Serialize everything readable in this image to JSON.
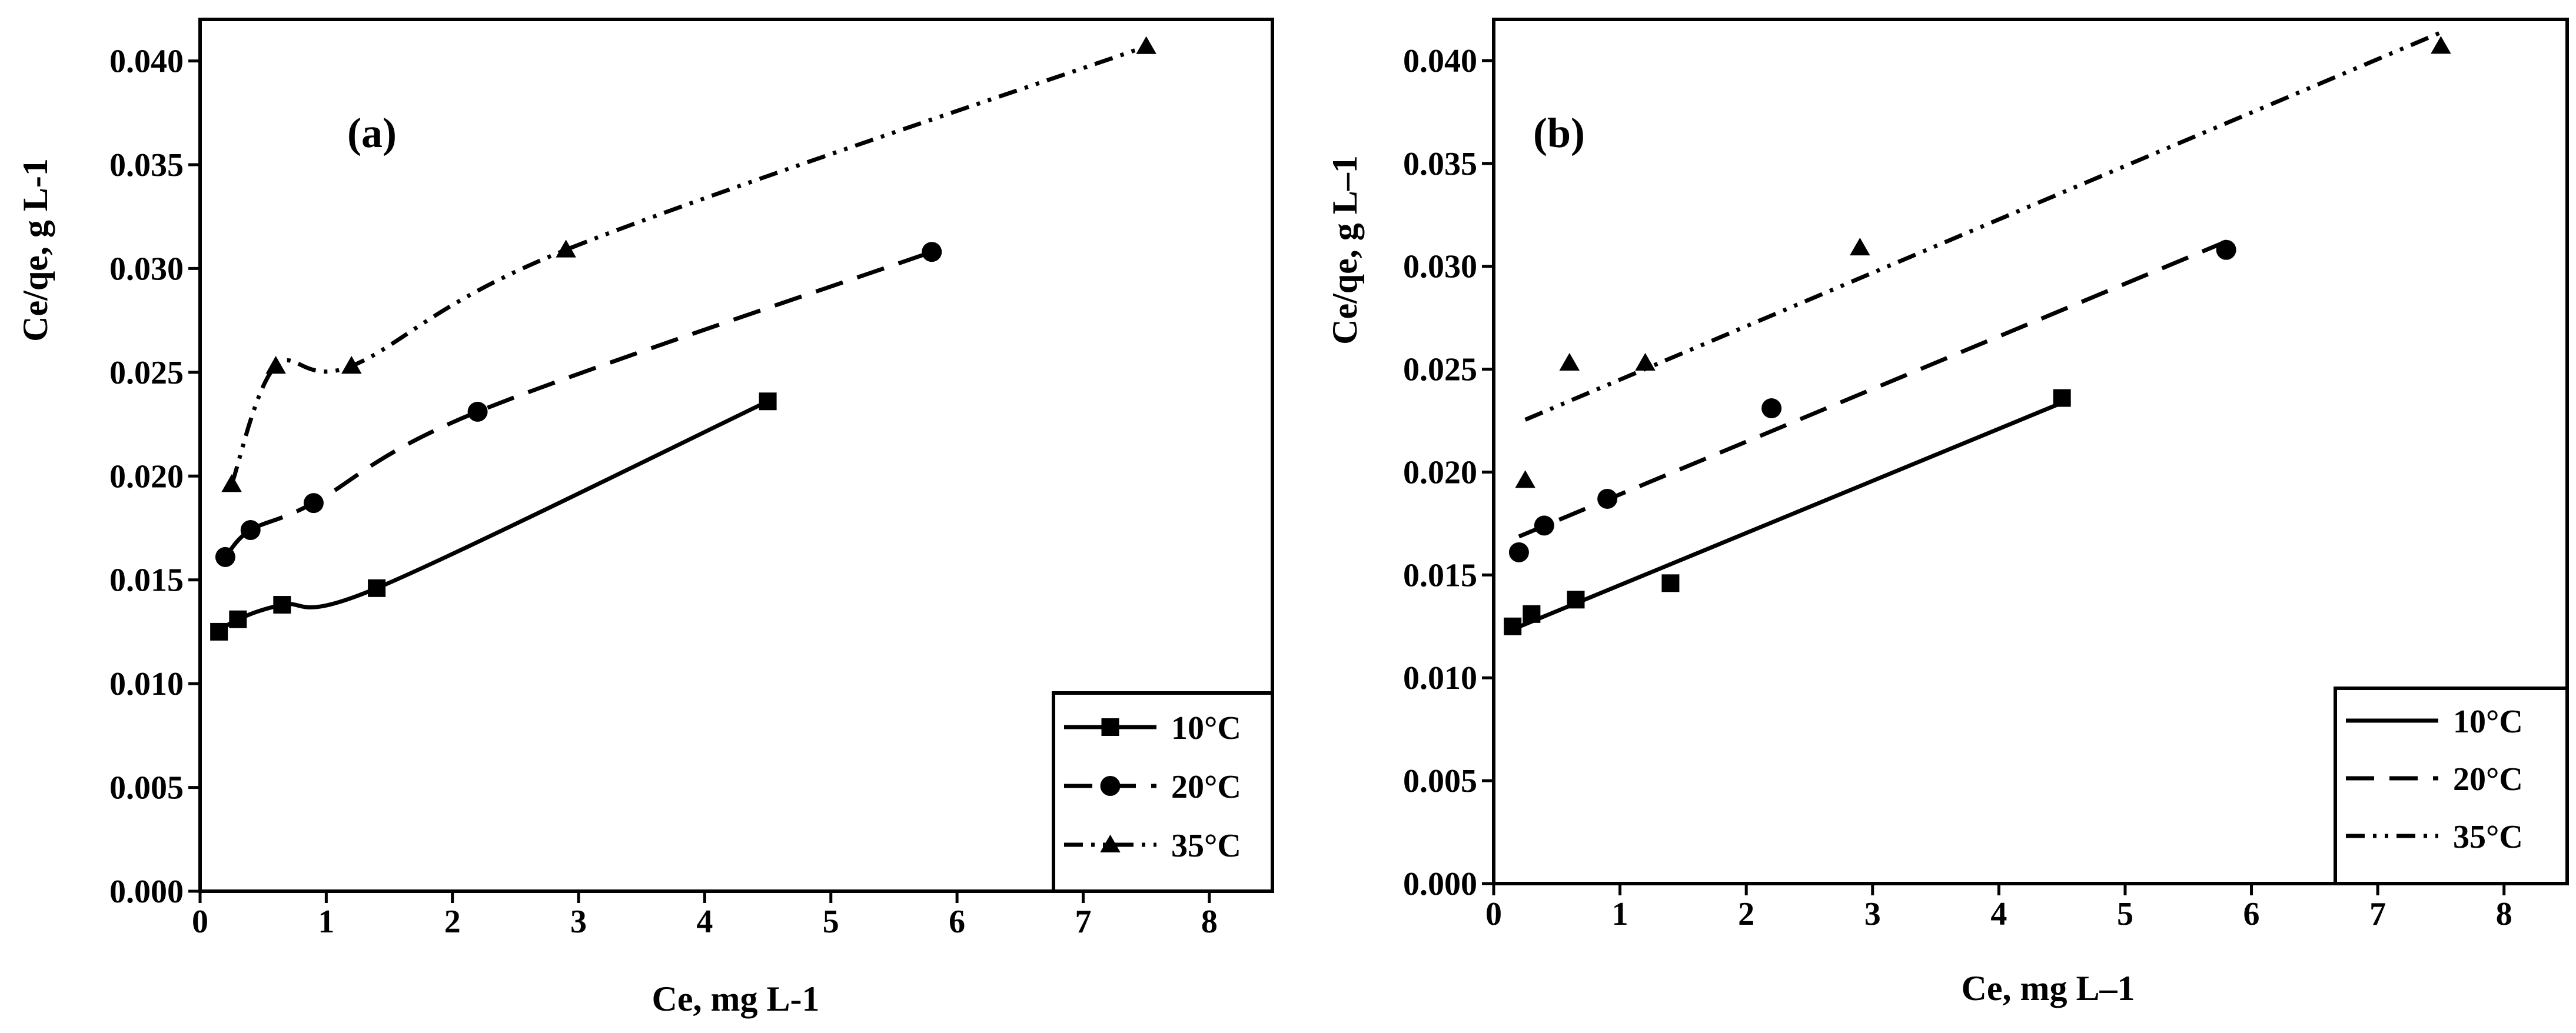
{
  "chart_data": [
    {
      "type": "scatter",
      "panel_label": "(a)",
      "fit": "curve",
      "xlabel": "Ce, mg L-1",
      "ylabel": "Ce/qe, g L-1",
      "xlim": [
        0,
        8.5
      ],
      "ylim": [
        0,
        0.042
      ],
      "xticks": [
        "0",
        "1",
        "2",
        "3",
        "4",
        "5",
        "6",
        "7",
        "8"
      ],
      "yticks": [
        "0.000",
        "0.005",
        "0.010",
        "0.015",
        "0.020",
        "0.025",
        "0.030",
        "0.035",
        "0.040"
      ],
      "legend_position": "bottom-right",
      "series": [
        {
          "name": "10°C",
          "marker": "square",
          "line": "solid",
          "x": [
            0.15,
            0.3,
            0.65,
            1.4,
            4.5
          ],
          "y": [
            0.0125,
            0.0131,
            0.0138,
            0.0146,
            0.0236
          ]
        },
        {
          "name": "20°C",
          "marker": "circle",
          "line": "dash",
          "x": [
            0.2,
            0.4,
            0.9,
            2.2,
            5.8
          ],
          "y": [
            0.0161,
            0.0174,
            0.0187,
            0.0231,
            0.0308
          ]
        },
        {
          "name": "35°C",
          "marker": "triangle",
          "line": "dash-dot-dot",
          "x": [
            0.25,
            0.6,
            1.2,
            2.9,
            7.5
          ],
          "y": [
            0.0196,
            0.0253,
            0.0253,
            0.0309,
            0.0407
          ]
        }
      ]
    },
    {
      "type": "scatter",
      "panel_label": "(b)",
      "fit": "linear",
      "xlabel": "Ce, mg L–1",
      "ylabel": "Ce/qe, g L–1",
      "xlim": [
        0,
        8.5
      ],
      "ylim": [
        0,
        0.042
      ],
      "xticks": [
        "0",
        "1",
        "2",
        "3",
        "4",
        "5",
        "6",
        "7",
        "8"
      ],
      "yticks": [
        "0.000",
        "0.005",
        "0.010",
        "0.015",
        "0.020",
        "0.025",
        "0.030",
        "0.035",
        "0.040"
      ],
      "legend_position": "bottom-right",
      "series": [
        {
          "name": "10°C",
          "marker": "square",
          "line": "solid",
          "x": [
            0.15,
            0.3,
            0.65,
            1.4,
            4.5
          ],
          "y": [
            0.0125,
            0.0131,
            0.0138,
            0.0146,
            0.0236
          ]
        },
        {
          "name": "20°C",
          "marker": "circle",
          "line": "dash",
          "x": [
            0.2,
            0.4,
            0.9,
            2.2,
            5.8
          ],
          "y": [
            0.0161,
            0.0174,
            0.0187,
            0.0231,
            0.0308
          ]
        },
        {
          "name": "35°C",
          "marker": "triangle",
          "line": "dash-dot-dot",
          "x": [
            0.25,
            0.6,
            1.2,
            2.9,
            7.5
          ],
          "y": [
            0.0196,
            0.0253,
            0.0253,
            0.0309,
            0.0407
          ]
        }
      ]
    }
  ]
}
